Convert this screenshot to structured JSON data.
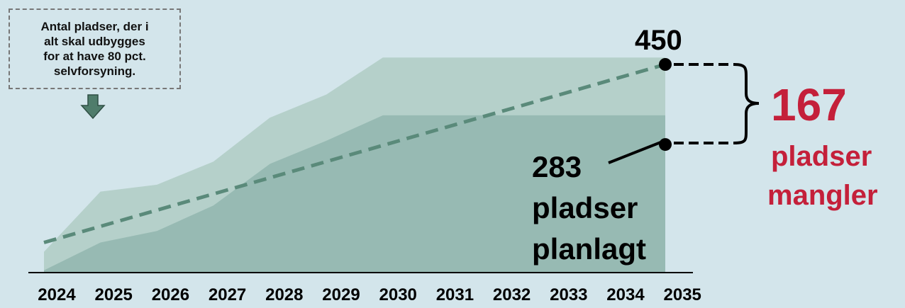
{
  "annotation": {
    "line1": "Antal pladser, der i",
    "line2": "alt skal udbygges",
    "line3": "for at have 80 pct.",
    "line4": "selvforsyning."
  },
  "labels": {
    "target_value": "450",
    "planned_value": "283",
    "planned_line1": "pladser",
    "planned_line2": "planlagt",
    "gap_value": "167",
    "gap_line1": "pladser",
    "gap_line2": "mangler"
  },
  "colors": {
    "background": "#d3e5eb",
    "area_light": "#b5d0ca",
    "area_dark": "#97bab3",
    "target_line": "#5a8a7a",
    "accent_red": "#c4203a",
    "arrow": "#4f7c6b"
  },
  "chart_data": {
    "type": "area",
    "categories": [
      "2024",
      "2025",
      "2026",
      "2027",
      "2028",
      "2029",
      "2030",
      "2031",
      "2032",
      "2033",
      "2034",
      "2035"
    ],
    "ylim": [
      0,
      450
    ],
    "series": [
      {
        "style": "area-light",
        "values": [
          45,
          175,
          190,
          240,
          335,
          385,
          465,
          465,
          465,
          465,
          465,
          465
        ]
      },
      {
        "style": "area-dark",
        "values": [
          5,
          65,
          90,
          145,
          235,
          285,
          340,
          340,
          340,
          340,
          340,
          340
        ]
      },
      {
        "style": "dashed-line",
        "x": [
          2024,
          2035
        ],
        "values": [
          65,
          450
        ]
      }
    ],
    "annotations": [
      {
        "x": 2035,
        "value": 450,
        "label": "450"
      },
      {
        "x": 2035,
        "value": 283,
        "label": "283 pladser planlagt"
      },
      {
        "difference": 167,
        "label": "167 pladser mangler"
      }
    ]
  }
}
